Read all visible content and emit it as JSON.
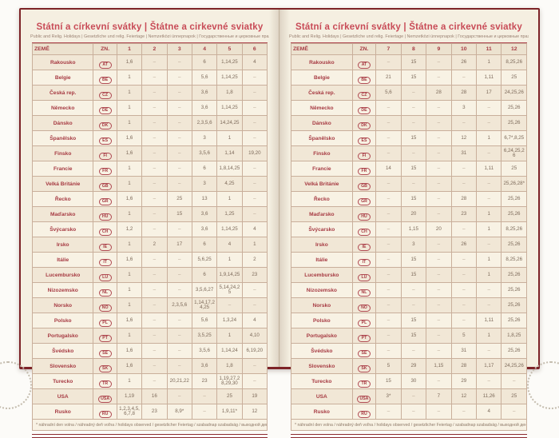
{
  "page": {
    "title": "Státní a církevní svátky | Štátne a cirkevné sviatky",
    "subtitle": "Public and Relig. Holidays | Gesetzliche und relig. Feiertage | Nemzetközi ünnepnapok | Государственные и церковные праздники",
    "footnote": "* náhradní den volna / náhradný deň voľna / holidays observed / gesetzlicher Feiertag / szabadnap szabadság / выходной день"
  },
  "table": {
    "country_header": "ZEMĚ",
    "code_header": "ZN.",
    "left_months": [
      "1",
      "2",
      "3",
      "4",
      "5",
      "6"
    ],
    "right_months": [
      "7",
      "8",
      "9",
      "10",
      "11",
      "12"
    ],
    "empty_mark": "–",
    "rows": [
      {
        "country": "Rakousko",
        "code": "AT",
        "m": {
          "1": "1,6",
          "4": "6",
          "5": "1,14,25",
          "6": "4",
          "8": "15",
          "10": "26",
          "11": "1",
          "12": "8,25,26"
        }
      },
      {
        "country": "Belgie",
        "code": "BE",
        "m": {
          "1": "1",
          "4": "5,6",
          "5": "1,14,25",
          "7": "21",
          "8": "15",
          "11": "1,11",
          "12": "25"
        }
      },
      {
        "country": "Česká rep.",
        "code": "CZ",
        "m": {
          "1": "1",
          "4": "3,6",
          "5": "1,8",
          "7": "5,6",
          "9": "28",
          "10": "28",
          "11": "17",
          "12": "24,25,26"
        }
      },
      {
        "country": "Německo",
        "code": "DE",
        "m": {
          "1": "1",
          "4": "3,6",
          "5": "1,14,25",
          "10": "3",
          "12": "25,26"
        }
      },
      {
        "country": "Dánsko",
        "code": "DK",
        "m": {
          "1": "1",
          "4": "2,3,5,6",
          "5": "14,24,25",
          "12": "25,26"
        }
      },
      {
        "country": "Španělsko",
        "code": "ES",
        "m": {
          "1": "1,6",
          "4": "3",
          "5": "1",
          "8": "15",
          "10": "12",
          "11": "1",
          "12": "6,7*,8,25"
        }
      },
      {
        "country": "Finsko",
        "code": "FI",
        "m": {
          "1": "1,6",
          "4": "3,5,6",
          "5": "1,14",
          "6": "19,20",
          "10": "31",
          "12": "6,24,25,26"
        }
      },
      {
        "country": "Francie",
        "code": "FR",
        "m": {
          "1": "1",
          "4": "6",
          "5": "1,8,14,25",
          "7": "14",
          "8": "15",
          "11": "1,11",
          "12": "25"
        }
      },
      {
        "country": "Velká Británie",
        "code": "GB",
        "m": {
          "1": "1",
          "4": "3",
          "5": "4,25",
          "12": "25,26,28*"
        }
      },
      {
        "country": "Řecko",
        "code": "GR",
        "m": {
          "1": "1,6",
          "3": "25",
          "4": "13",
          "5": "1",
          "8": "15",
          "10": "28",
          "12": "25,26"
        }
      },
      {
        "country": "Maďarsko",
        "code": "HU",
        "m": {
          "1": "1",
          "3": "15",
          "4": "3,6",
          "5": "1,25",
          "8": "20",
          "10": "23",
          "11": "1",
          "12": "25,26"
        }
      },
      {
        "country": "Švýcarsko",
        "code": "CH",
        "m": {
          "1": "1,2",
          "4": "3,6",
          "5": "1,14,25",
          "6": "4",
          "8": "1,15",
          "9": "20",
          "11": "1",
          "12": "8,25,26"
        }
      },
      {
        "country": "Irsko",
        "code": "IE",
        "m": {
          "1": "1",
          "2": "2",
          "3": "17",
          "4": "6",
          "5": "4",
          "6": "1",
          "8": "3",
          "10": "26",
          "12": "25,26"
        }
      },
      {
        "country": "Itálie",
        "code": "IT",
        "m": {
          "1": "1,6",
          "4": "5,6,25",
          "5": "1",
          "6": "2",
          "8": "15",
          "11": "1",
          "12": "8,25,26"
        }
      },
      {
        "country": "Lucembursko",
        "code": "LU",
        "m": {
          "1": "1",
          "4": "6",
          "5": "1,9,14,25",
          "6": "23",
          "8": "15",
          "11": "1",
          "12": "25,26"
        }
      },
      {
        "country": "Nizozemsko",
        "code": "NL",
        "m": {
          "1": "1",
          "4": "3,5,6,27",
          "5": "5,14,24,25",
          "12": "25,26"
        }
      },
      {
        "country": "Norsko",
        "code": "NO",
        "m": {
          "1": "1",
          "3": "2,3,5,6",
          "4": "1,14,17,24,25",
          "12": "25,26"
        }
      },
      {
        "country": "Polsko",
        "code": "PL",
        "m": {
          "1": "1,6",
          "4": "5,6",
          "5": "1,3,24",
          "6": "4",
          "8": "15",
          "11": "1,11",
          "12": "25,26"
        }
      },
      {
        "country": "Portugalsko",
        "code": "PT",
        "m": {
          "1": "1",
          "4": "3,5,25",
          "5": "1",
          "6": "4,10",
          "8": "15",
          "10": "5",
          "11": "1",
          "12": "1,8,25"
        }
      },
      {
        "country": "Švédsko",
        "code": "SE",
        "m": {
          "1": "1,6",
          "4": "3,5,6",
          "5": "1,14,24",
          "6": "6,19,20",
          "10": "31",
          "12": "25,26"
        }
      },
      {
        "country": "Slovensko",
        "code": "SK",
        "m": {
          "1": "1,6",
          "4": "3,6",
          "5": "1,8",
          "7": "5",
          "8": "29",
          "9": "1,15",
          "10": "28",
          "11": "1,17",
          "12": "24,25,26"
        }
      },
      {
        "country": "Turecko",
        "code": "TR",
        "m": {
          "1": "1",
          "3": "20,21,22",
          "4": "23",
          "5": "1,19,27,28,29,30",
          "7": "15",
          "8": "30",
          "10": "29"
        }
      },
      {
        "country": "USA",
        "code": "USA",
        "m": {
          "1": "1,19",
          "2": "16",
          "5": "25",
          "6": "19",
          "7": "3*",
          "9": "7",
          "10": "12",
          "11": "11,26",
          "12": "25"
        }
      },
      {
        "country": "Rusko",
        "code": "RU",
        "m": {
          "1": "1,2,3,4,5,6,7,8",
          "2": "23",
          "3": "8,9*",
          "5": "1,9,11*",
          "6": "12",
          "11": "4"
        }
      }
    ]
  },
  "colors": {
    "cover": "#7d2327",
    "paper": "#f5efe1",
    "accent": "#c84b57",
    "table_border": "#c9af9b",
    "country_text": "#a63a42",
    "value_text": "#7d6a5a"
  }
}
